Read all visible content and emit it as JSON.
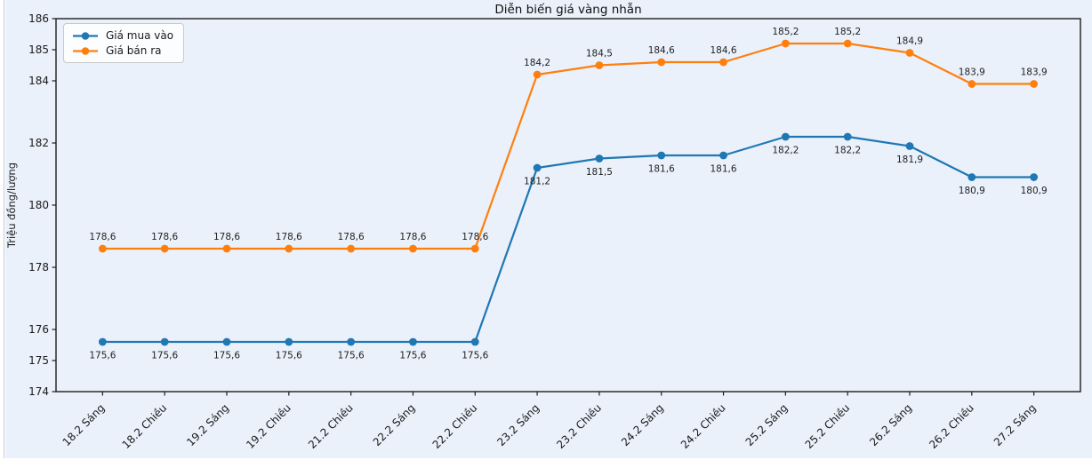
{
  "figure": {
    "background": "#eaf1fa",
    "page_background": "#ffffff",
    "edge_line_color": "#c4c9cf",
    "spine_color": "#1c1c1c"
  },
  "chart_data": {
    "type": "line",
    "title": "Diễn biến giá vàng nhẫn",
    "xlabel": "",
    "ylabel": "Triệu đồng/lượng",
    "categories": [
      "18.2 Sáng",
      "18.2 Chiều",
      "19.2 Sáng",
      "19.2 Chiều",
      "21.2 Chiều",
      "22.2 Sáng",
      "22.2 Chiều",
      "23.2 Sáng",
      "23.2 Chiều",
      "24.2 Sáng",
      "24.2 Chiều",
      "25.2 Sáng",
      "25.2 Chiều",
      "26.2 Sáng",
      "26.2 Chiều",
      "27.2 Sáng"
    ],
    "series": [
      {
        "name": "Giá mua vào",
        "color": "#1f77b4",
        "label_side": "below",
        "values": [
          175.6,
          175.6,
          175.6,
          175.6,
          175.6,
          175.6,
          175.6,
          181.2,
          181.5,
          181.6,
          181.6,
          182.2,
          182.2,
          181.9,
          180.9,
          180.9
        ]
      },
      {
        "name": "Giá bán ra",
        "color": "#ff7f0e",
        "label_side": "above",
        "values": [
          178.6,
          178.6,
          178.6,
          178.6,
          178.6,
          178.6,
          178.6,
          184.2,
          184.5,
          184.6,
          184.6,
          185.2,
          185.2,
          184.9,
          183.9,
          183.9
        ]
      }
    ],
    "ylim": [
      174,
      186
    ],
    "yticks": [
      174,
      175,
      176,
      178,
      180,
      182,
      184,
      185,
      186
    ],
    "grid": false,
    "legend_position": "upper-left",
    "point_label_decimal_separator": ","
  }
}
